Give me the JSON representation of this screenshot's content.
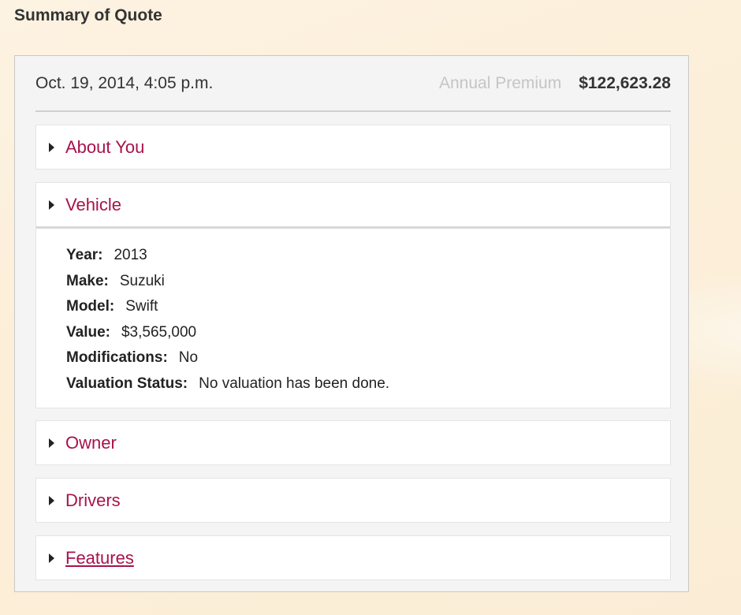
{
  "page_title": "Summary of Quote",
  "quote": {
    "date": "Oct. 19, 2014, 4:05 p.m.",
    "premium_label": "Annual Premium",
    "premium_value": "$122,623.28"
  },
  "sections": [
    {
      "title": "About You",
      "expanded": false
    },
    {
      "title": "Vehicle",
      "expanded": true,
      "fields": [
        {
          "label": "Year:",
          "value": "2013"
        },
        {
          "label": "Make:",
          "value": "Suzuki"
        },
        {
          "label": "Model:",
          "value": "Swift"
        },
        {
          "label": "Value:",
          "value": "$3,565,000"
        },
        {
          "label": "Modifications:",
          "value": "No"
        },
        {
          "label": "Valuation Status:",
          "value": "No valuation has been done."
        }
      ]
    },
    {
      "title": "Owner",
      "expanded": false
    },
    {
      "title": "Drivers",
      "expanded": false
    },
    {
      "title": "Features",
      "expanded": false
    }
  ],
  "colors": {
    "link": "#a8124a",
    "background": "#fcefd9"
  }
}
